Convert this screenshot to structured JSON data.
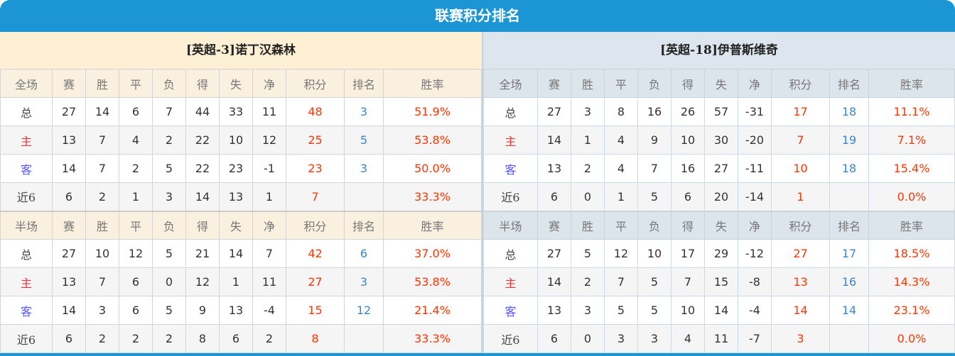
{
  "title": "联赛积分排名",
  "colors": {
    "header_blue": "#1b95d4",
    "points": "#ff3300",
    "rank": "#3a86cc",
    "home": "#ee3333",
    "away": "#5555ff"
  },
  "columns_full": [
    "全场",
    "赛",
    "胜",
    "平",
    "负",
    "得",
    "失",
    "净",
    "积分",
    "排名",
    "胜率"
  ],
  "columns_half": [
    "半场",
    "赛",
    "胜",
    "平",
    "负",
    "得",
    "失",
    "净",
    "积分",
    "排名",
    "胜率"
  ],
  "teams": [
    {
      "name": "[英超-3]诺丁汉森林",
      "full": [
        [
          "总",
          "27",
          "14",
          "6",
          "7",
          "44",
          "33",
          "11",
          "48",
          "3",
          "51.9%"
        ],
        [
          "主",
          "13",
          "7",
          "4",
          "2",
          "22",
          "10",
          "12",
          "25",
          "5",
          "53.8%"
        ],
        [
          "客",
          "14",
          "7",
          "2",
          "5",
          "22",
          "23",
          "-1",
          "23",
          "3",
          "50.0%"
        ],
        [
          "近6",
          "6",
          "2",
          "1",
          "3",
          "14",
          "13",
          "1",
          "7",
          "",
          "33.3%"
        ]
      ],
      "half": [
        [
          "总",
          "27",
          "10",
          "12",
          "5",
          "21",
          "14",
          "7",
          "42",
          "6",
          "37.0%"
        ],
        [
          "主",
          "13",
          "7",
          "6",
          "0",
          "12",
          "1",
          "11",
          "27",
          "3",
          "53.8%"
        ],
        [
          "客",
          "14",
          "3",
          "6",
          "5",
          "9",
          "13",
          "-4",
          "15",
          "12",
          "21.4%"
        ],
        [
          "近6",
          "6",
          "2",
          "2",
          "2",
          "8",
          "6",
          "2",
          "8",
          "",
          "33.3%"
        ]
      ]
    },
    {
      "name": "[英超-18]伊普斯维奇",
      "full": [
        [
          "总",
          "27",
          "3",
          "8",
          "16",
          "26",
          "57",
          "-31",
          "17",
          "18",
          "11.1%"
        ],
        [
          "主",
          "14",
          "1",
          "4",
          "9",
          "10",
          "30",
          "-20",
          "7",
          "19",
          "7.1%"
        ],
        [
          "客",
          "13",
          "2",
          "4",
          "7",
          "16",
          "27",
          "-11",
          "10",
          "18",
          "15.4%"
        ],
        [
          "近6",
          "6",
          "0",
          "1",
          "5",
          "6",
          "20",
          "-14",
          "1",
          "",
          "0.0%"
        ]
      ],
      "half": [
        [
          "总",
          "27",
          "5",
          "12",
          "10",
          "17",
          "29",
          "-12",
          "27",
          "17",
          "18.5%"
        ],
        [
          "主",
          "14",
          "2",
          "7",
          "5",
          "7",
          "15",
          "-8",
          "13",
          "16",
          "14.3%"
        ],
        [
          "客",
          "13",
          "3",
          "5",
          "5",
          "10",
          "14",
          "-4",
          "14",
          "14",
          "23.1%"
        ],
        [
          "近6",
          "6",
          "0",
          "3",
          "3",
          "4",
          "11",
          "-7",
          "3",
          "",
          "0.0%"
        ]
      ]
    }
  ]
}
